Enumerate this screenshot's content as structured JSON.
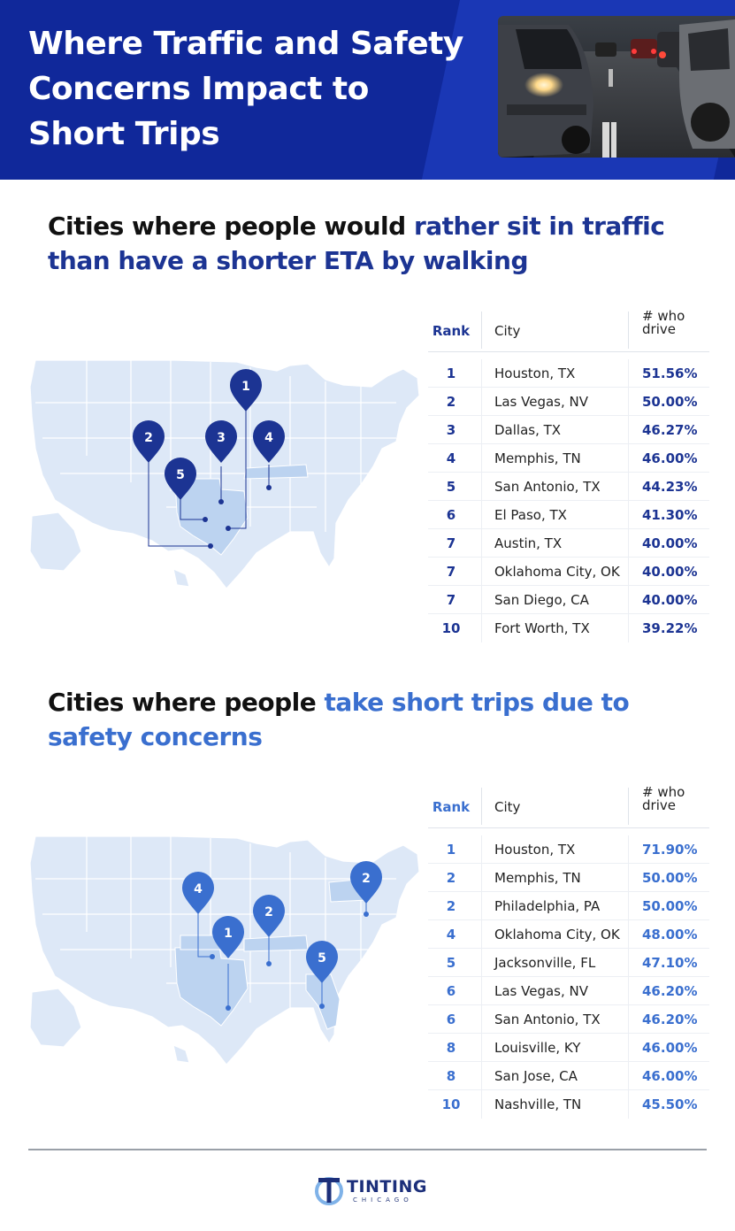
{
  "header": {
    "title": "Where Traffic and Safety Concerns Impact to Short Trips",
    "background_color": "#10289a",
    "photo": "traffic-jam-photo"
  },
  "section1": {
    "heading_plain": "Cities where people would ",
    "heading_highlight": "rather sit in traffic than have a shorter ETA by walking",
    "accent_color": "#1c3493",
    "map": {
      "pins": [
        "1",
        "2",
        "3",
        "4",
        "5"
      ]
    },
    "table": {
      "col_rank": "Rank",
      "col_city": "City",
      "col_drive": "# who drive",
      "rows": [
        {
          "rank": "1",
          "city": "Houston, TX",
          "value": "51.56%"
        },
        {
          "rank": "2",
          "city": "Las Vegas, NV",
          "value": "50.00%"
        },
        {
          "rank": "3",
          "city": "Dallas, TX",
          "value": "46.27%"
        },
        {
          "rank": "4",
          "city": "Memphis, TN",
          "value": "46.00%"
        },
        {
          "rank": "5",
          "city": "San Antonio, TX",
          "value": "44.23%"
        },
        {
          "rank": "6",
          "city": "El Paso, TX",
          "value": "41.30%"
        },
        {
          "rank": "7",
          "city": "Austin, TX",
          "value": "40.00%"
        },
        {
          "rank": "7",
          "city": "Oklahoma City, OK",
          "value": "40.00%"
        },
        {
          "rank": "7",
          "city": "San Diego, CA",
          "value": "40.00%"
        },
        {
          "rank": "10",
          "city": "Fort Worth, TX",
          "value": "39.22%"
        }
      ]
    }
  },
  "section2": {
    "heading_plain": "Cities where people ",
    "heading_highlight": "take short trips due to safety concerns",
    "accent_color": "#3a6fcf",
    "map": {
      "pins": [
        "2",
        "4",
        "2",
        "1",
        "5"
      ]
    },
    "table": {
      "col_rank": "Rank",
      "col_city": "City",
      "col_drive": "# who drive",
      "rows": [
        {
          "rank": "1",
          "city": "Houston, TX",
          "value": "71.90%"
        },
        {
          "rank": "2",
          "city": "Memphis, TN",
          "value": "50.00%"
        },
        {
          "rank": "2",
          "city": "Philadelphia, PA",
          "value": "50.00%"
        },
        {
          "rank": "4",
          "city": "Oklahoma City, OK",
          "value": "48.00%"
        },
        {
          "rank": "5",
          "city": "Jacksonville, FL",
          "value": "47.10%"
        },
        {
          "rank": "6",
          "city": "Las Vegas, NV",
          "value": "46.20%"
        },
        {
          "rank": "6",
          "city": "San Antonio, TX",
          "value": "46.20%"
        },
        {
          "rank": "8",
          "city": "Louisville, KY",
          "value": "46.00%"
        },
        {
          "rank": "8",
          "city": "San Jose, CA",
          "value": "46.00%"
        },
        {
          "rank": "10",
          "city": "Nashville, TN",
          "value": "45.50%"
        }
      ]
    }
  },
  "footer": {
    "logo_word": "TINTING",
    "logo_sub": "CHICAGO",
    "logo_icon": "t-circle-logo-icon"
  }
}
